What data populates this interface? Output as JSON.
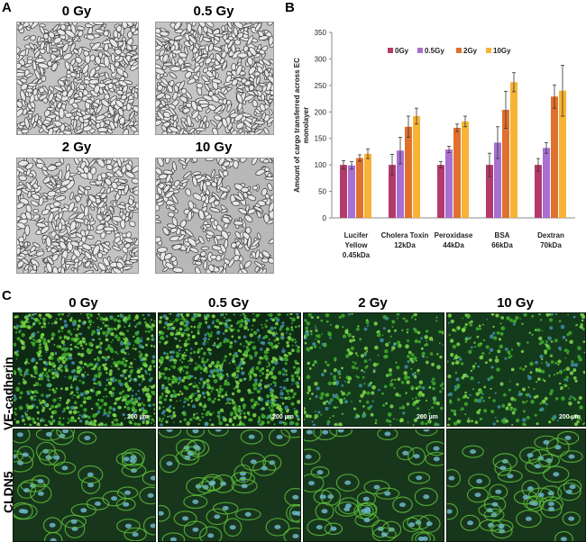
{
  "panelA": {
    "letter": "A",
    "dose_labels": [
      "0 Gy",
      "0.5 Gy",
      "2 Gy",
      "10 Gy"
    ]
  },
  "panelB": {
    "letter": "B"
  },
  "chart_data": {
    "type": "bar",
    "ylabel": "Amount of cargo transferred across EC monolayer",
    "ylim": [
      0,
      350
    ],
    "yticks": [
      0,
      50,
      100,
      150,
      200,
      250,
      300,
      350
    ],
    "categories": [
      [
        "Lucifer",
        "Yellow",
        "0.45kDa"
      ],
      [
        "Cholera Toxin",
        "12kDa"
      ],
      [
        "Peroxidase",
        "44kDa"
      ],
      [
        "BSA",
        "66kDa"
      ],
      [
        "Dextran",
        "70kDa"
      ]
    ],
    "legend_position": "top",
    "series": [
      {
        "name": "0Gy",
        "color": "#b33a6a",
        "values": [
          100,
          100,
          100,
          100,
          100
        ],
        "errors": [
          8,
          20,
          6,
          22,
          12
        ]
      },
      {
        "name": "0.5Gy",
        "color": "#a86fd0",
        "values": [
          99,
          127,
          129,
          142,
          132
        ],
        "errors": [
          7,
          25,
          6,
          30,
          10
        ]
      },
      {
        "name": "2Gy",
        "color": "#e0702e",
        "values": [
          113,
          172,
          170,
          204,
          229
        ],
        "errors": [
          6,
          20,
          7,
          35,
          22
        ]
      },
      {
        "name": "10Gy",
        "color": "#f6b335",
        "values": [
          121,
          192,
          182,
          256,
          240
        ],
        "errors": [
          9,
          15,
          10,
          18,
          48
        ]
      }
    ]
  },
  "panelC": {
    "letter": "C",
    "dose_labels": [
      "0 Gy",
      "0.5 Gy",
      "2 Gy",
      "10 Gy"
    ],
    "row_labels": [
      "VE-cadherin",
      "CLDN5"
    ],
    "scale_bar_label": "200 µm"
  }
}
